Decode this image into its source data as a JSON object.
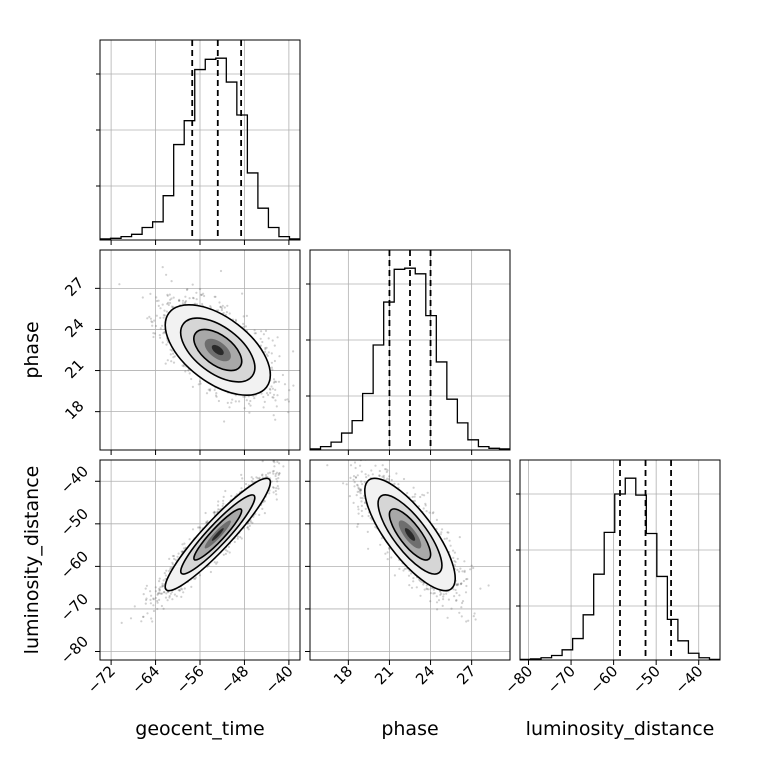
{
  "chart_data": {
    "type": "corner",
    "parameters": [
      "geocent_time",
      "phase",
      "luminosity_distance"
    ],
    "axis_labels": {
      "geocent_time": "geocent_time",
      "phase": "phase",
      "luminosity_distance": "luminosity_distance"
    },
    "ranges": {
      "geocent_time": [
        -74,
        -38
      ],
      "phase": [
        15.2,
        29.8
      ],
      "luminosity_distance": [
        -82,
        -35
      ]
    },
    "ticks": {
      "geocent_time": [
        -72,
        -64,
        -56,
        -48,
        -40
      ],
      "phase": [
        18,
        21,
        24,
        27
      ],
      "luminosity_distance": [
        -80,
        -70,
        -60,
        -50,
        -40
      ]
    },
    "tick_labels": {
      "geocent_time": [
        "−72",
        "−64",
        "−56",
        "−48",
        "−40"
      ],
      "phase": [
        "18",
        "21",
        "24",
        "27"
      ],
      "luminosity_distance": [
        "−80",
        "−70",
        "−60",
        "−50",
        "−40"
      ]
    },
    "quantiles": {
      "geocent_time": [
        -57.4,
        -52.8,
        -48.6
      ],
      "phase": [
        21.0,
        22.5,
        24.0
      ],
      "luminosity_distance": [
        -58.5,
        -52.5,
        -46.5
      ]
    },
    "histograms": {
      "geocent_time": [
        2,
        3,
        6,
        10,
        22,
        32,
        78,
        168,
        210,
        300,
        318,
        320,
        278,
        220,
        118,
        56,
        22,
        6,
        2
      ],
      "phase": [
        2,
        6,
        14,
        30,
        52,
        100,
        186,
        262,
        320,
        322,
        312,
        238,
        156,
        90,
        48,
        18,
        6,
        3,
        2
      ],
      "luminosity_distance": [
        1,
        2,
        4,
        8,
        18,
        38,
        80,
        152,
        226,
        294,
        322,
        292,
        224,
        148,
        72,
        34,
        12,
        4,
        1
      ]
    },
    "distribution": {
      "mean": [
        -52.8,
        22.5,
        -52.5
      ],
      "sigma": [
        4.3,
        1.5,
        6.0
      ],
      "correlation": [
        [
          1.0,
          -0.55,
          0.93
        ],
        [
          -0.55,
          1.0,
          -0.78
        ],
        [
          0.93,
          -0.78,
          1.0
        ]
      ]
    },
    "grid": true,
    "histogram_style": "step",
    "contour_style": "filled-gray"
  }
}
